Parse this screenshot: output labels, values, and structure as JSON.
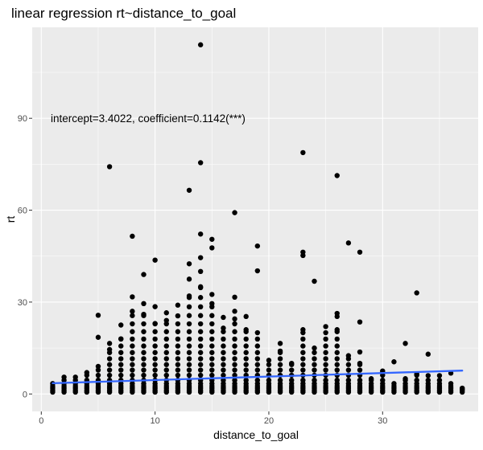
{
  "chart_data": {
    "type": "scatter",
    "title": "linear regression rt~distance_to_goal",
    "xlabel": "distance_to_goal",
    "ylabel": "rt",
    "annotation": "intercept=3.4022, coefficient=0.1142(***)",
    "xlim": [
      -0.8,
      38.4
    ],
    "ylim": [
      -5.7,
      119.7
    ],
    "x_ticks": [
      0,
      10,
      20,
      30
    ],
    "y_ticks": [
      0,
      30,
      60,
      90
    ],
    "x_tick_labels": [
      "0",
      "10",
      "20",
      "30"
    ],
    "y_tick_labels": [
      "0",
      "30",
      "60",
      "90"
    ],
    "grid": true,
    "regression_line": {
      "intercept": 3.4022,
      "slope": 0.1142,
      "x_range": [
        1,
        37
      ],
      "color": "#3366ff"
    },
    "colors": {
      "panel": "#ebebeb",
      "grid": "#ffffff",
      "points": "#000000",
      "line": "#3366ff"
    },
    "outliers": [
      [
        6,
        74.2
      ],
      [
        8,
        51.5
      ],
      [
        9,
        39
      ],
      [
        10,
        43.7
      ],
      [
        13,
        66.5
      ],
      [
        14,
        114
      ],
      [
        14,
        75.5
      ],
      [
        14,
        52.2
      ],
      [
        15,
        50.5
      ],
      [
        15,
        47.7
      ],
      [
        17,
        59.2
      ],
      [
        19,
        48.3
      ],
      [
        19,
        40.2
      ],
      [
        23,
        78.8
      ],
      [
        23,
        46.3
      ],
      [
        23,
        45.2
      ],
      [
        24,
        36.8
      ],
      [
        26,
        71.3
      ],
      [
        27,
        49.3
      ],
      [
        28,
        46.3
      ],
      [
        33,
        33
      ],
      [
        5,
        25.7
      ],
      [
        13,
        42.5
      ],
      [
        13,
        37.5
      ],
      [
        14,
        40
      ],
      [
        14,
        44.5
      ],
      [
        15,
        32.5
      ],
      [
        17,
        31.6
      ],
      [
        17,
        27
      ],
      [
        18,
        25.3
      ],
      [
        12,
        29
      ],
      [
        11,
        26.5
      ],
      [
        16,
        25
      ],
      [
        28,
        23.5
      ],
      [
        32,
        16.5
      ],
      [
        34,
        13
      ],
      [
        31,
        10.5
      ],
      [
        30,
        7.5
      ],
      [
        36,
        6.8
      ],
      [
        37,
        1.5
      ],
      [
        7,
        22.5
      ],
      [
        8,
        31.7
      ],
      [
        9,
        29.5
      ],
      [
        10,
        28.5
      ],
      [
        26,
        26.3
      ],
      [
        26,
        25.3
      ],
      [
        23,
        21
      ],
      [
        25,
        22
      ],
      [
        28,
        13.7
      ],
      [
        21,
        16.5
      ],
      [
        6,
        16.5
      ],
      [
        5,
        18.5
      ]
    ],
    "columns": [
      {
        "x": 1,
        "max": 4
      },
      {
        "x": 2,
        "max": 5.5
      },
      {
        "x": 3,
        "max": 5.5
      },
      {
        "x": 4,
        "max": 7
      },
      {
        "x": 5,
        "max": 9
      },
      {
        "x": 6,
        "max": 14.5
      },
      {
        "x": 7,
        "max": 18
      },
      {
        "x": 8,
        "max": 27
      },
      {
        "x": 9,
        "max": 26
      },
      {
        "x": 10,
        "max": 23
      },
      {
        "x": 11,
        "max": 24
      },
      {
        "x": 12,
        "max": 25.5
      },
      {
        "x": 13,
        "max": 32
      },
      {
        "x": 14,
        "max": 35
      },
      {
        "x": 15,
        "max": 29.5
      },
      {
        "x": 16,
        "max": 21.5
      },
      {
        "x": 17,
        "max": 24.5
      },
      {
        "x": 18,
        "max": 21
      },
      {
        "x": 19,
        "max": 20
      },
      {
        "x": 20,
        "max": 11
      },
      {
        "x": 21,
        "max": 14
      },
      {
        "x": 22,
        "max": 10
      },
      {
        "x": 23,
        "max": 20
      },
      {
        "x": 24,
        "max": 15
      },
      {
        "x": 25,
        "max": 20
      },
      {
        "x": 26,
        "max": 21
      },
      {
        "x": 27,
        "max": 12.5
      },
      {
        "x": 28,
        "max": 10
      },
      {
        "x": 29,
        "max": 5
      },
      {
        "x": 30,
        "max": 7
      },
      {
        "x": 31,
        "max": 4
      },
      {
        "x": 32,
        "max": 5
      },
      {
        "x": 33,
        "max": 6.5
      },
      {
        "x": 34,
        "max": 6
      },
      {
        "x": 35,
        "max": 6
      },
      {
        "x": 36,
        "max": 3
      },
      {
        "x": 37,
        "max": 1.5
      }
    ]
  }
}
